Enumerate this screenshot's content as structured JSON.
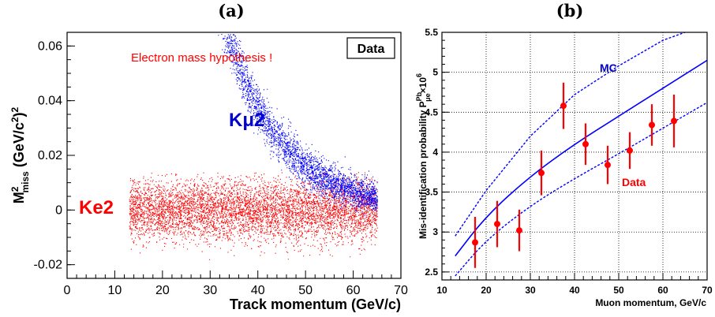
{
  "chart_data": [
    {
      "panel_label": "(a)",
      "type": "scatter",
      "xlabel": "Track momentum (GeV/c)",
      "ylabel": "M²miss (GeV/c²)²",
      "ylabel_main": "M",
      "ylabel_sup": "2",
      "ylabel_sub": "miss",
      "ylabel_rest": " (GeV/c",
      "ylabel_sup2": "2",
      "ylabel_end": ")",
      "ylabel_sup3": "2",
      "xlim": [
        0,
        70
      ],
      "ylim": [
        -0.025,
        0.065
      ],
      "xticks": [
        "0",
        "10",
        "20",
        "30",
        "40",
        "50",
        "60",
        "70"
      ],
      "yticks": [
        "-0.02",
        "0",
        "0.02",
        "0.04",
        "0.06"
      ],
      "legend_box": "Data",
      "annotations": [
        {
          "text": "Electron mass hypothesis !",
          "color": "#ff0000"
        },
        {
          "text": "Kμ2",
          "color": "#0000cc"
        },
        {
          "text": "Ke2",
          "color": "#ff0000"
        }
      ],
      "series": [
        {
          "name": "Kμ2",
          "color": "#0000ff",
          "p_range": [
            13,
            65
          ],
          "m2_model": "0.0105*exp(-(p-55)/11.8), spread ~0.004"
        },
        {
          "name": "Ke2",
          "color": "#ff0000",
          "p_range": [
            13,
            65
          ],
          "m2_center": 0.0,
          "m2_band": [
            -0.018,
            0.014
          ]
        }
      ]
    },
    {
      "panel_label": "(b)",
      "type": "line",
      "xlabel": "Muon momentum, GeV/c",
      "ylabel": "Mis-identification probability P^Pb_μe ×10^6",
      "ylabel_text": "Mis-identification probability P",
      "ylabel_sup": "Pb",
      "ylabel_sub": "μe",
      "ylabel_mult": "×10",
      "ylabel_exp": "6",
      "xlim": [
        10,
        70
      ],
      "ylim": [
        2.4,
        5.5
      ],
      "xticks": [
        "10",
        "20",
        "30",
        "40",
        "50",
        "60",
        "70"
      ],
      "yticks": [
        "2.5",
        "3",
        "3.5",
        "4",
        "4.5",
        "5",
        "5.5"
      ],
      "grid": true,
      "annotations": [
        {
          "text": "MC",
          "color": "#0000cc"
        },
        {
          "text": "Data",
          "color": "#ff0000"
        }
      ],
      "series": [
        {
          "name": "Data",
          "color": "#ff0000",
          "x": [
            17.5,
            22.5,
            27.5,
            32.5,
            37.5,
            42.5,
            47.5,
            52.5,
            57.5,
            62.5
          ],
          "y": [
            2.87,
            3.1,
            3.02,
            3.74,
            4.58,
            4.1,
            3.84,
            4.02,
            4.34,
            4.39
          ],
          "yerr": [
            0.32,
            0.29,
            0.26,
            0.28,
            0.29,
            0.26,
            0.24,
            0.23,
            0.26,
            0.33
          ]
        },
        {
          "name": "MC",
          "color": "#0000ff",
          "x": [
            13,
            20,
            30,
            40,
            50,
            60,
            70
          ],
          "y": [
            2.7,
            3.2,
            3.7,
            4.1,
            4.45,
            4.8,
            5.15
          ],
          "lower": {
            "x": [
              13,
              20,
              30,
              40,
              50,
              60,
              70
            ],
            "y": [
              2.45,
              2.9,
              3.33,
              3.67,
              3.98,
              4.3,
              4.62
            ]
          },
          "upper": {
            "x": [
              13,
              20,
              30,
              40,
              50,
              60,
              70
            ],
            "y": [
              2.95,
              3.52,
              4.2,
              4.72,
              5.08,
              5.4,
              5.6
            ]
          }
        }
      ]
    }
  ]
}
